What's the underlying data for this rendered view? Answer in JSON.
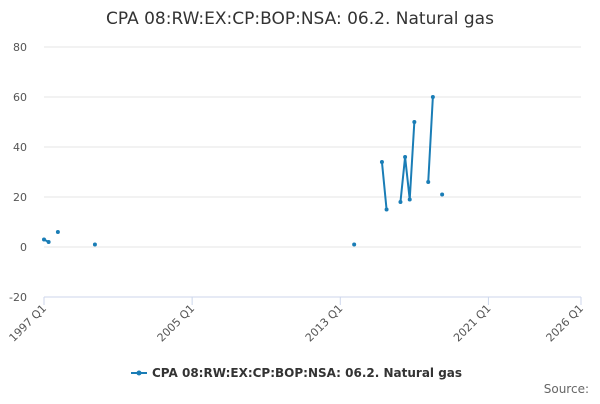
{
  "chart_data": {
    "type": "line",
    "title": "CPA 08:RW:EX:CP:BOP:NSA: 06.2. Natural gas",
    "x": [
      "1997 Q1",
      "1997 Q2",
      "1997 Q3",
      "1997 Q4",
      "1998 Q1",
      "1999 Q4",
      "2000 Q1",
      "2013 Q4",
      "2014 Q1",
      "2015 Q2",
      "2015 Q3",
      "2015 Q4",
      "2016 Q2",
      "2016 Q3",
      "2016 Q4",
      "2017 Q1",
      "2017 Q2",
      "2017 Q4",
      "2018 Q1",
      "2018 Q2",
      "2018 Q3"
    ],
    "series": [
      {
        "name": "CPA 08:RW:EX:CP:BOP:NSA: 06.2. Natural gas",
        "color": "#1a7db6",
        "values": [
          3,
          2,
          null,
          6,
          null,
          1,
          null,
          1,
          null,
          34,
          15,
          null,
          18,
          36,
          19,
          50,
          null,
          26,
          60,
          null,
          21
        ]
      }
    ],
    "xlim": [
      "1997 Q1",
      "2026 Q1"
    ],
    "xticks": [
      "1997 Q1",
      "2005 Q1",
      "2013 Q1",
      "2021 Q1",
      "2026 Q1"
    ],
    "ylim": [
      -20,
      80
    ],
    "yticks": [
      -20,
      0,
      20,
      40,
      60,
      80
    ],
    "grid": true,
    "legend": "bottom",
    "source_label": "Source:"
  }
}
